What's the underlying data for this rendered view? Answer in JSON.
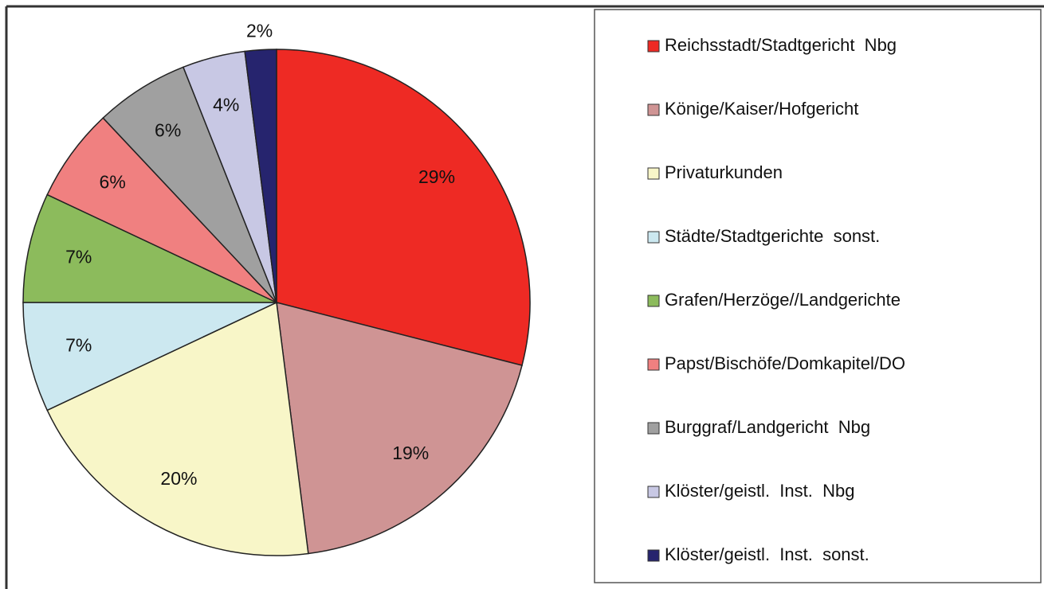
{
  "chart_data": {
    "type": "pie",
    "categories": [
      "Reichsstadt/Stadtgericht  Nbg",
      "Könige/Kaiser/Hofgericht",
      "Privaturkunden",
      "Städte/Stadtgerichte  sonst.",
      "Grafen/Herzöge//Landgerichte",
      "Papst/Bischöfe/Domkapitel/DO",
      "Burggraf/Landgericht  Nbg",
      "Klöster/geistl.  Inst.  Nbg",
      "Klöster/geistl.  Inst.  sonst."
    ],
    "values": [
      29,
      19,
      20,
      7,
      7,
      6,
      6,
      4,
      2
    ],
    "value_labels": [
      "29%",
      "19%",
      "20%",
      "7%",
      "7%",
      "6%",
      "6%",
      "4%",
      "2%"
    ],
    "colors": [
      "#ee2a24",
      "#cf9494",
      "#f8f6c8",
      "#cce8f0",
      "#8cbb5c",
      "#f08080",
      "#a0a0a0",
      "#c8c8e4",
      "#26246e"
    ],
    "legend": "right"
  }
}
